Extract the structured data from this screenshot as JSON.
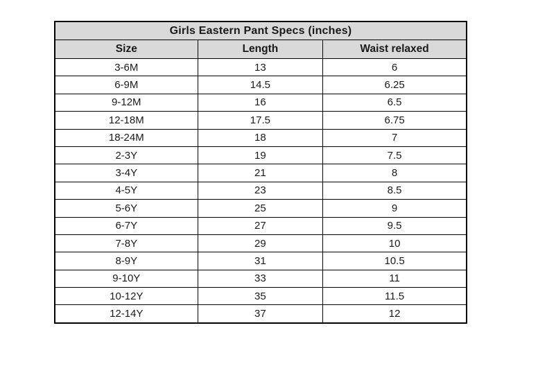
{
  "table": {
    "title": "Girls Eastern Pant Specs (inches)",
    "columns": [
      "Size",
      "Length",
      "Waist relaxed"
    ],
    "rows": [
      {
        "size": "3-6M",
        "length": "13",
        "waist": "6"
      },
      {
        "size": "6-9M",
        "length": "14.5",
        "waist": "6.25"
      },
      {
        "size": "9-12M",
        "length": "16",
        "waist": "6.5"
      },
      {
        "size": "12-18M",
        "length": "17.5",
        "waist": "6.75"
      },
      {
        "size": "18-24M",
        "length": "18",
        "waist": "7"
      },
      {
        "size": "2-3Y",
        "length": "19",
        "waist": "7.5"
      },
      {
        "size": "3-4Y",
        "length": "21",
        "waist": "8"
      },
      {
        "size": "4-5Y",
        "length": "23",
        "waist": "8.5"
      },
      {
        "size": "5-6Y",
        "length": "25",
        "waist": "9"
      },
      {
        "size": "6-7Y",
        "length": "27",
        "waist": "9.5"
      },
      {
        "size": "7-8Y",
        "length": "29",
        "waist": "10"
      },
      {
        "size": "8-9Y",
        "length": "31",
        "waist": "10.5"
      },
      {
        "size": "9-10Y",
        "length": "33",
        "waist": "11"
      },
      {
        "size": "10-12Y",
        "length": "35",
        "waist": "11.5"
      },
      {
        "size": "12-14Y",
        "length": "37",
        "waist": "12"
      }
    ]
  },
  "colors": {
    "header_background": "#d9d9d9",
    "border": "#000000",
    "text": "#1a1a1a",
    "page_background": "#ffffff"
  },
  "chart_data": {
    "type": "table",
    "title": "Girls Eastern Pant Specs (inches)",
    "columns": [
      "Size",
      "Length",
      "Waist relaxed"
    ],
    "categories": [
      "3-6M",
      "6-9M",
      "9-12M",
      "12-18M",
      "18-24M",
      "2-3Y",
      "3-4Y",
      "4-5Y",
      "5-6Y",
      "6-7Y",
      "7-8Y",
      "8-9Y",
      "9-10Y",
      "10-12Y",
      "12-14Y"
    ],
    "series": [
      {
        "name": "Length",
        "values": [
          13,
          14.5,
          16,
          17.5,
          18,
          19,
          21,
          23,
          25,
          27,
          29,
          31,
          33,
          35,
          37
        ]
      },
      {
        "name": "Waist relaxed",
        "values": [
          6,
          6.25,
          6.5,
          6.75,
          7,
          7.5,
          8,
          8.5,
          9,
          9.5,
          10,
          10.5,
          11,
          11.5,
          12
        ]
      }
    ]
  }
}
